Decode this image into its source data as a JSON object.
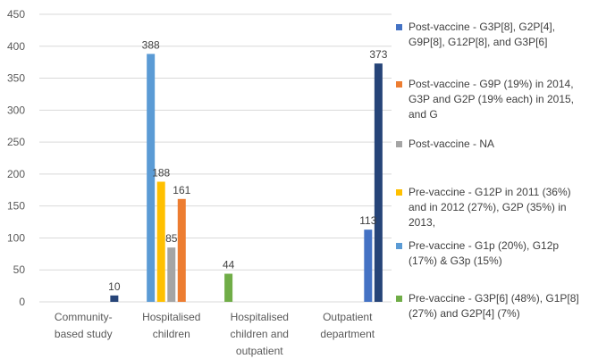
{
  "chart_data": {
    "type": "bar",
    "ylim": [
      0,
      450
    ],
    "yticks": [
      0,
      50,
      100,
      150,
      200,
      250,
      300,
      350,
      400,
      450
    ],
    "grid": true,
    "legend_position": "right",
    "categories": [
      [
        "Community-",
        "based study"
      ],
      [
        "Hospitalised",
        "children"
      ],
      [
        "Hospitalised",
        "children and",
        "outpatient"
      ],
      [
        "Outpatient",
        "department"
      ]
    ],
    "series": [
      {
        "name": "Pre-vaccine - G3P[6] (48%), G1P[8] (27%) and G2P[4] (7%)",
        "color": "#70ad47",
        "values": [
          null,
          null,
          44,
          null
        ]
      },
      {
        "name": "Pre-vaccine - G1p (20%), G12p (17%) & G3p (15%)",
        "color": "#5b9bd5",
        "values": [
          null,
          388,
          null,
          null
        ]
      },
      {
        "name": "Pre-vaccine - G12P in 2011 (36%) and in 2012 (27%), G2P (35%) in 2013,",
        "color": "#ffc000",
        "values": [
          null,
          188,
          null,
          null
        ]
      },
      {
        "name": "Post-vaccine - NA",
        "color": "#a5a5a5",
        "values": [
          null,
          85,
          null,
          null
        ]
      },
      {
        "name": "Post-vaccine - G9P (19%) in 2014, G3P and G2P (19% each) in 2015, and G",
        "color": "#ed7d31",
        "values": [
          null,
          161,
          null,
          null
        ]
      },
      {
        "name": "Post-vaccine - G3P[8], G2P[4], G9P[8], G12P[8], and G3P[6]",
        "color": "#4472c4",
        "values": [
          null,
          null,
          null,
          113
        ]
      },
      {
        "name": "",
        "color": "#264478",
        "values": [
          10,
          null,
          null,
          373
        ]
      }
    ],
    "legend": [
      {
        "color": "#4472c4",
        "lines": [
          "Post-vaccine - G3P[8], G2P[4],",
          "G9P[8], G12P[8], and G3P[6]"
        ]
      },
      {
        "color": "#ed7d31",
        "lines": [
          "Post-vaccine - G9P (19%) in 2014,",
          "G3P and G2P (19% each) in 2015,",
          "and G"
        ]
      },
      {
        "color": "#a5a5a5",
        "lines": [
          "Post-vaccine - NA"
        ]
      },
      {
        "color": "#ffc000",
        "lines": [
          "Pre-vaccine -  G12P in 2011 (36%)",
          "and in 2012 (27%), G2P (35%) in",
          "2013,"
        ]
      },
      {
        "color": "#5b9bd5",
        "lines": [
          "Pre-vaccine -  G1p (20%), G12p",
          "(17%) & G3p (15%)"
        ]
      },
      {
        "color": "#70ad47",
        "lines": [
          "Pre-vaccine - G3P[6] (48%), G1P[8]",
          "(27%) and G2P[4] (7%)"
        ]
      }
    ]
  }
}
